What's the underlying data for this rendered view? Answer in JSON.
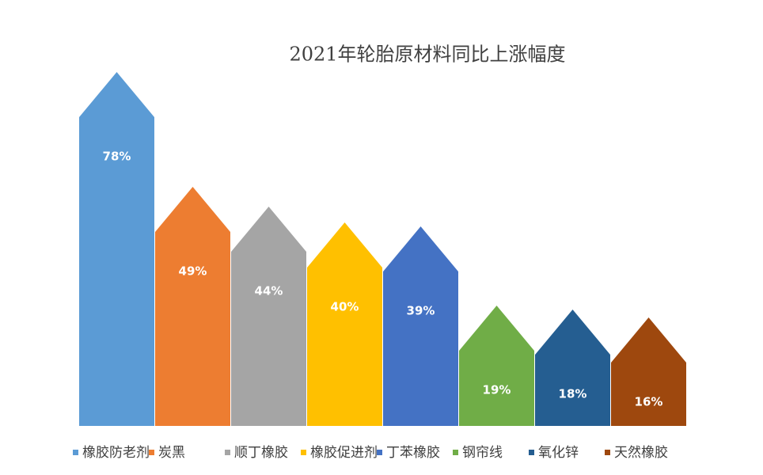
{
  "chart_data": {
    "type": "house-bar",
    "title": "2021年轮胎原材料同比上涨幅度",
    "categories": [
      "橡胶防老剂",
      "炭黑",
      "顺丁橡胶",
      "橡胶促进剂",
      "丁苯橡胶",
      "钢帘线",
      "氧化锌",
      "天然橡胶"
    ],
    "values": [
      78,
      49,
      44,
      40,
      39,
      19,
      18,
      16
    ],
    "value_labels": [
      "78%",
      "49%",
      "44%",
      "40%",
      "39%",
      "19%",
      "18%",
      "16%"
    ],
    "colors": [
      "#5b9bd5",
      "#ed7d31",
      "#a5a5a5",
      "#ffc000",
      "#4472c4",
      "#70ad47",
      "#255e91",
      "#9e480e"
    ]
  }
}
